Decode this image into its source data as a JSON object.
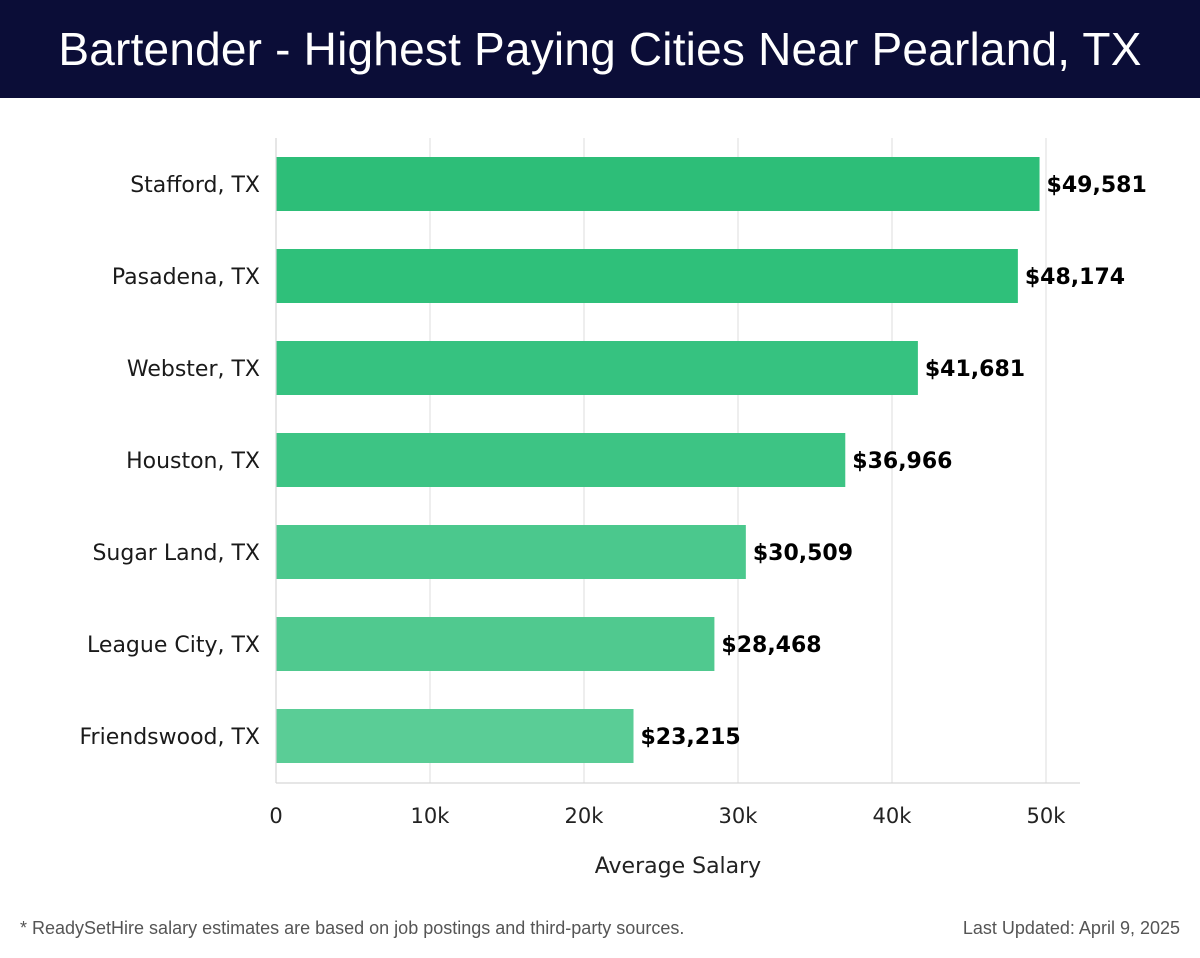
{
  "header": {
    "title": "Bartender - Highest Paying Cities Near Pearland, TX"
  },
  "chart_data": {
    "type": "bar",
    "orientation": "horizontal",
    "title": "Bartender - Highest Paying Cities Near Pearland, TX",
    "xlabel": "Average Salary",
    "ylabel": "",
    "xlim": [
      0,
      52000
    ],
    "ticks": [
      0,
      10000,
      20000,
      30000,
      40000,
      50000
    ],
    "tick_labels": [
      "0",
      "10k",
      "20k",
      "30k",
      "40k",
      "50k"
    ],
    "grid": true,
    "categories": [
      "Stafford, TX",
      "Pasadena, TX",
      "Webster, TX",
      "Houston, TX",
      "Sugar Land, TX",
      "League City, TX",
      "Friendswood, TX"
    ],
    "values": [
      49581,
      48174,
      41681,
      36966,
      30509,
      28468,
      23215
    ],
    "value_labels": [
      "$49,581",
      "$48,174",
      "$41,681",
      "$36,966",
      "$30,509",
      "$28,468",
      "$23,215"
    ],
    "bar_colors": [
      "#2dbe78",
      "#2fc07a",
      "#36c280",
      "#3dc484",
      "#4bc88d",
      "#50c98f",
      "#5acd96"
    ]
  },
  "footer": {
    "note": "* ReadySetHire salary estimates are based on job postings and third-party sources.",
    "updated": "Last Updated: April 9, 2025"
  }
}
